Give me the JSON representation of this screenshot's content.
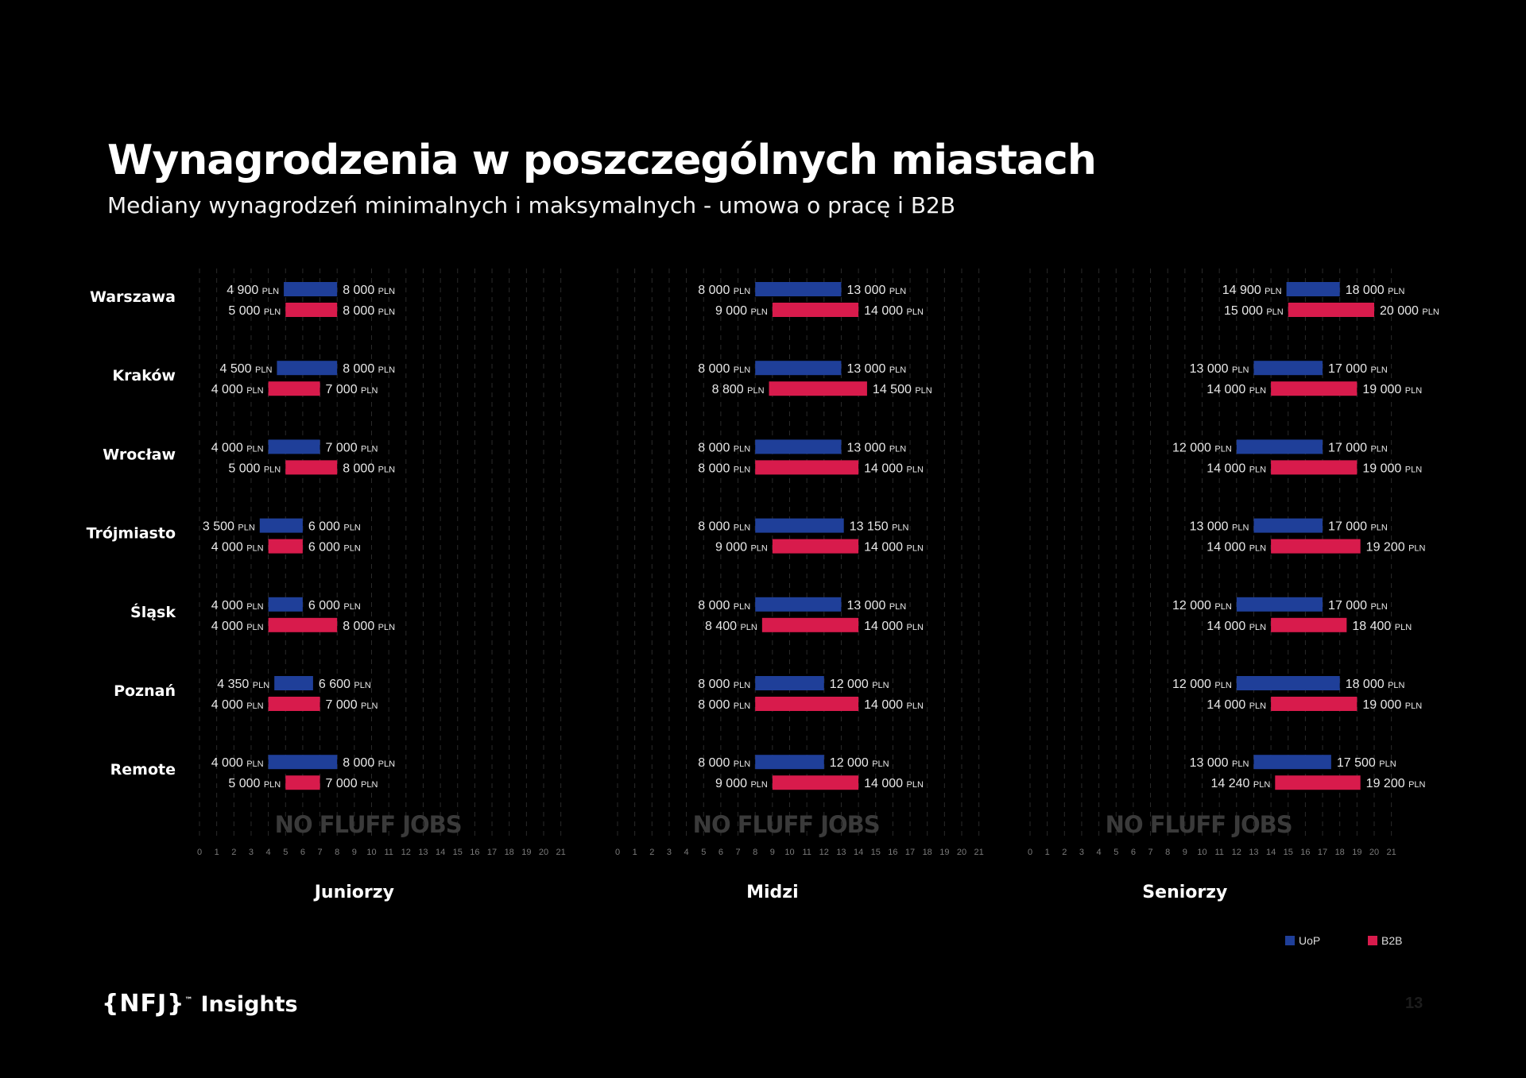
{
  "title": "Wynagrodzenia w poszczególnych miastach",
  "subtitle": "Mediany wynagrodzeń minimalnych i maksymalnych - umowa o pracę i B2B",
  "brand": {
    "logo_text": "{NFJ}",
    "tm": "™",
    "label": "Insights"
  },
  "page_number": "13",
  "watermark": "NO FLUFF JOBS",
  "colors": {
    "uop": "#1f3f99",
    "b2b": "#d81b4c",
    "background": "#000000"
  },
  "chart_data": {
    "type": "bar",
    "orientation": "horizontal-range",
    "unit": "PLN",
    "categories": [
      "Warszawa",
      "Kraków",
      "Wrocław",
      "Trójmiasto",
      "Śląsk",
      "Poznań",
      "Remote"
    ],
    "x_unit_scale": 1000,
    "xticks": [
      0,
      1,
      2,
      3,
      4,
      5,
      6,
      7,
      8,
      9,
      10,
      11,
      12,
      13,
      14,
      15,
      16,
      17,
      18,
      19,
      20,
      21
    ],
    "xlim": [
      0,
      21
    ],
    "grid": "vertical-dashed",
    "legend": {
      "position": "bottom-right",
      "entries": [
        "UoP",
        "B2B"
      ]
    },
    "panels": [
      {
        "name": "Juniorzy",
        "series": [
          {
            "name": "UoP",
            "ranges": [
              [
                4900,
                8000
              ],
              [
                4500,
                8000
              ],
              [
                4000,
                7000
              ],
              [
                3500,
                6000
              ],
              [
                4000,
                6000
              ],
              [
                4350,
                6600
              ],
              [
                4000,
                8000
              ]
            ]
          },
          {
            "name": "B2B",
            "ranges": [
              [
                5000,
                8000
              ],
              [
                4000,
                7000
              ],
              [
                5000,
                8000
              ],
              [
                4000,
                6000
              ],
              [
                4000,
                8000
              ],
              [
                4000,
                7000
              ],
              [
                5000,
                7000
              ]
            ]
          }
        ]
      },
      {
        "name": "Midzi",
        "series": [
          {
            "name": "UoP",
            "ranges": [
              [
                8000,
                13000
              ],
              [
                8000,
                13000
              ],
              [
                8000,
                13000
              ],
              [
                8000,
                13150
              ],
              [
                8000,
                13000
              ],
              [
                8000,
                12000
              ],
              [
                8000,
                12000
              ]
            ]
          },
          {
            "name": "B2B",
            "ranges": [
              [
                9000,
                14000
              ],
              [
                8800,
                14500
              ],
              [
                8000,
                14000
              ],
              [
                9000,
                14000
              ],
              [
                8400,
                14000
              ],
              [
                8000,
                14000
              ],
              [
                9000,
                14000
              ]
            ]
          }
        ]
      },
      {
        "name": "Seniorzy",
        "series": [
          {
            "name": "UoP",
            "ranges": [
              [
                14900,
                18000
              ],
              [
                13000,
                17000
              ],
              [
                12000,
                17000
              ],
              [
                13000,
                17000
              ],
              [
                12000,
                17000
              ],
              [
                12000,
                18000
              ],
              [
                13000,
                17500
              ]
            ]
          },
          {
            "name": "B2B",
            "ranges": [
              [
                15000,
                20000
              ],
              [
                14000,
                19000
              ],
              [
                14000,
                19000
              ],
              [
                14000,
                19200
              ],
              [
                14000,
                18400
              ],
              [
                14000,
                19000
              ],
              [
                14240,
                19200
              ]
            ]
          }
        ]
      }
    ]
  }
}
